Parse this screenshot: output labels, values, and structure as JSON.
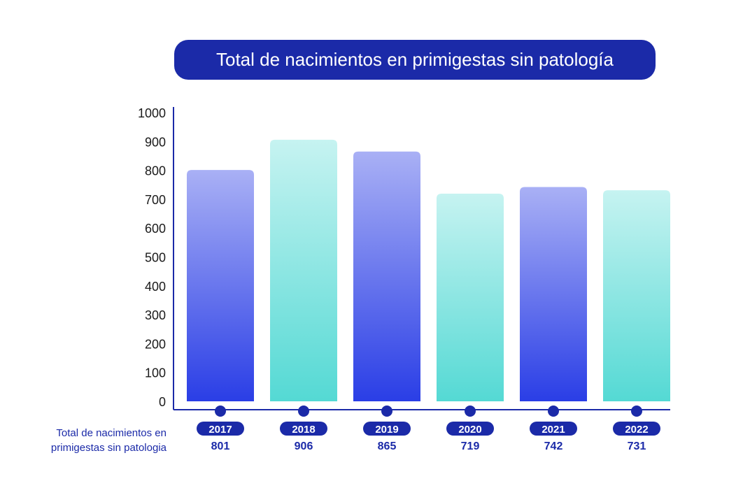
{
  "chart_data": {
    "type": "bar",
    "title": "Total de nacimientos en primigestas sin patología",
    "series_label": "Total de nacimientos en primigestas sin patologia",
    "categories": [
      "2017",
      "2018",
      "2019",
      "2020",
      "2021",
      "2022"
    ],
    "values": [
      801,
      906,
      865,
      719,
      742,
      731
    ],
    "value_labels": [
      "801",
      "906",
      "865",
      "719",
      "742",
      "731"
    ],
    "ylim": [
      0,
      1000
    ],
    "yticks": [
      "0",
      "100",
      "200",
      "300",
      "400",
      "500",
      "600",
      "700",
      "800",
      "900",
      "1000"
    ],
    "grid": false,
    "colors": {
      "title_bg": "#1b2aa8",
      "axis": "#1b2aa8",
      "bar_blue_top": "#a9b0f5",
      "bar_blue_bottom": "#2a3ee6",
      "bar_teal_top": "#c6f3f1",
      "bar_teal_bottom": "#54d9d4",
      "pill": "#1b2aa8",
      "value_text": "#1b2aa8",
      "tick_text": "#1a1a1a"
    }
  }
}
